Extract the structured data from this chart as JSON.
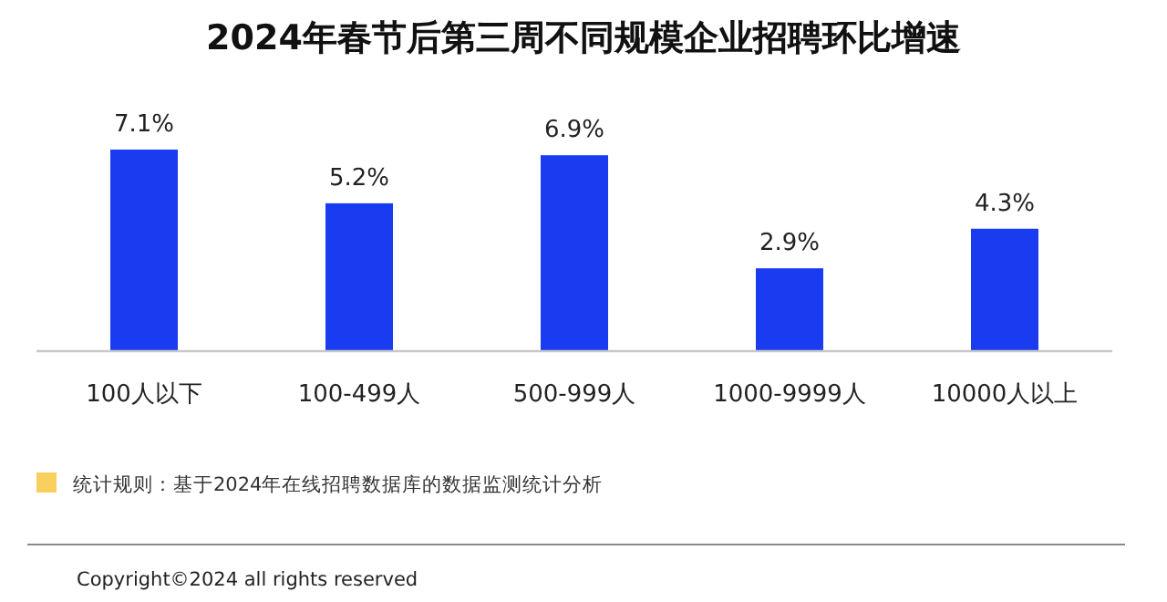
{
  "chart_data": {
    "type": "bar",
    "title": "2024年春节后第三周不同规模企业招聘环比增速",
    "categories": [
      "100人以下",
      "100-499人",
      "500-999人",
      "1000-9999人",
      "10000人以上"
    ],
    "values": [
      7.1,
      5.2,
      6.9,
      2.9,
      4.3
    ],
    "value_labels": [
      "7.1%",
      "5.2%",
      "6.9%",
      "2.9%",
      "4.3%"
    ],
    "color": "#1a3cf0",
    "annotations": [
      "统计规则：基于2024年在线招聘数据库的数据监测统计分析",
      "Copyright©2024 all rights reserved"
    ]
  }
}
